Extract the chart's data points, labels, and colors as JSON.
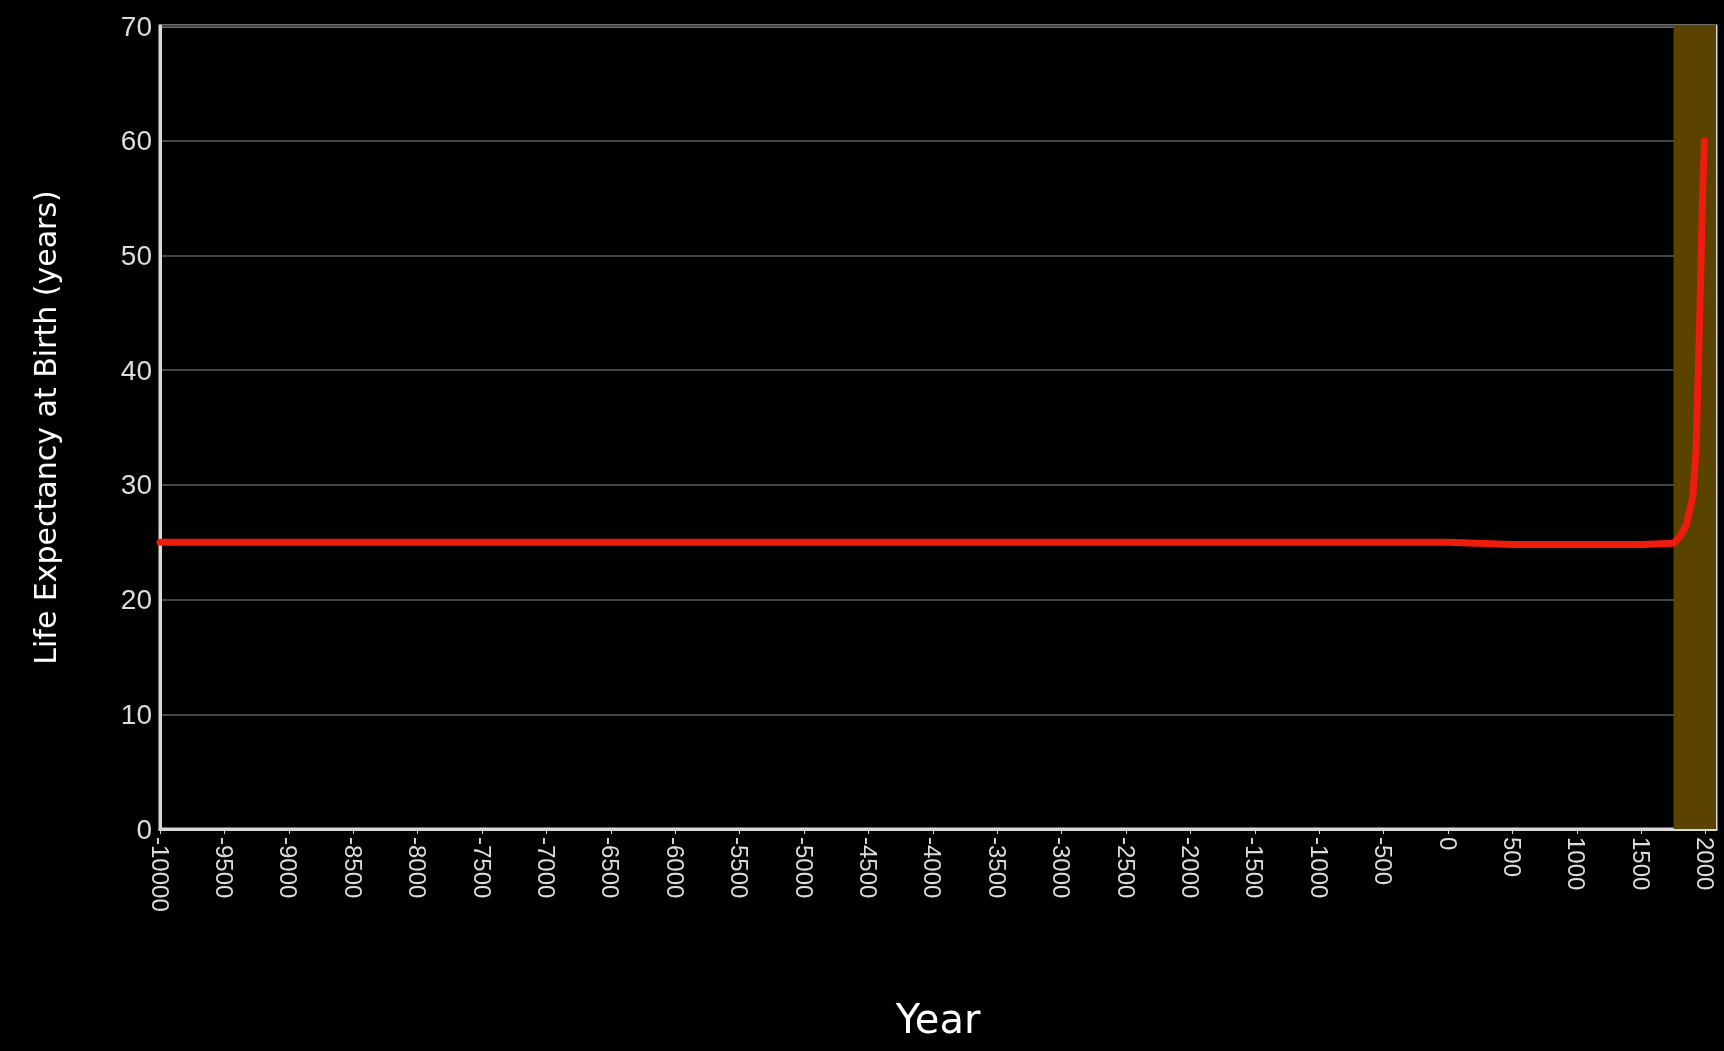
{
  "chart_data": {
    "type": "line",
    "xlabel": "Year",
    "ylabel": "Life Expectancy at Birth (years)",
    "series": [
      {
        "color": "#ee1c0c",
        "x": [
          -10000,
          -5000,
          0,
          500,
          1000,
          1500,
          1750,
          1800,
          1850,
          1900,
          1925,
          1950,
          1965,
          1975,
          1990
        ],
        "values": [
          25,
          25,
          25,
          24.8,
          24.8,
          24.8,
          24.9,
          25.5,
          26.5,
          29,
          33,
          43,
          50,
          55,
          60
        ]
      }
    ],
    "xlim": [
      -10000,
      2080
    ],
    "xticks": [
      -10000,
      -9500,
      -9000,
      -8500,
      -8000,
      -7500,
      -7000,
      -6500,
      -6000,
      -5500,
      -5000,
      -4500,
      -4000,
      -3500,
      -3000,
      -2500,
      -2000,
      -1500,
      -1000,
      -500,
      0,
      500,
      1000,
      1500,
      2000
    ],
    "ylim": [
      0,
      70
    ],
    "yticks": [
      0,
      10,
      20,
      30,
      40,
      50,
      60,
      70
    ],
    "grid": "y",
    "marker": "none",
    "line_style": "solid",
    "bands": [
      {
        "axis": "x",
        "from": 1750,
        "to": 2080,
        "color": "#5a4300"
      }
    ]
  }
}
